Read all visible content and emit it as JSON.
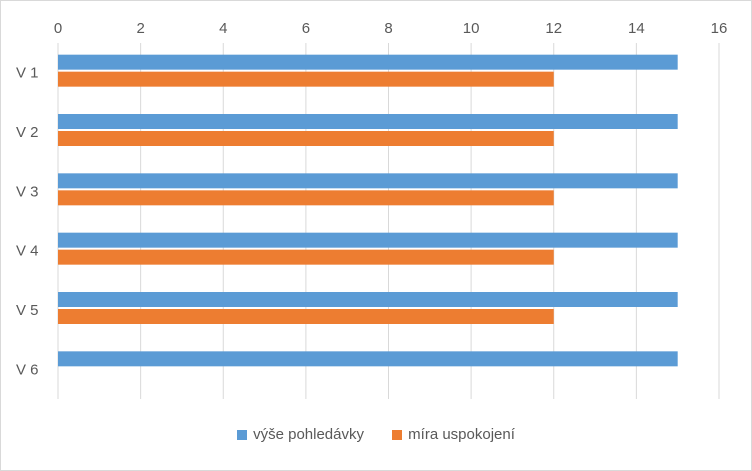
{
  "chart_data": {
    "type": "bar",
    "orientation": "horizontal",
    "categories": [
      "V 1",
      "V 2",
      "V 3",
      "V 4",
      "V 5",
      "V 6"
    ],
    "series": [
      {
        "name": "výše pohledávky",
        "color": "#5b9bd5",
        "values": [
          15,
          15,
          15,
          15,
          15,
          15
        ]
      },
      {
        "name": "míra uspokojení",
        "color": "#ed7d31",
        "values": [
          12,
          12,
          12,
          12,
          12,
          null
        ]
      }
    ],
    "xlim": [
      0,
      16
    ],
    "x_ticks": [
      "0",
      "2",
      "4",
      "6",
      "8",
      "10",
      "12",
      "14",
      "16"
    ],
    "x_axis_position": "top",
    "grid": "vertical",
    "legend_position": "bottom"
  }
}
